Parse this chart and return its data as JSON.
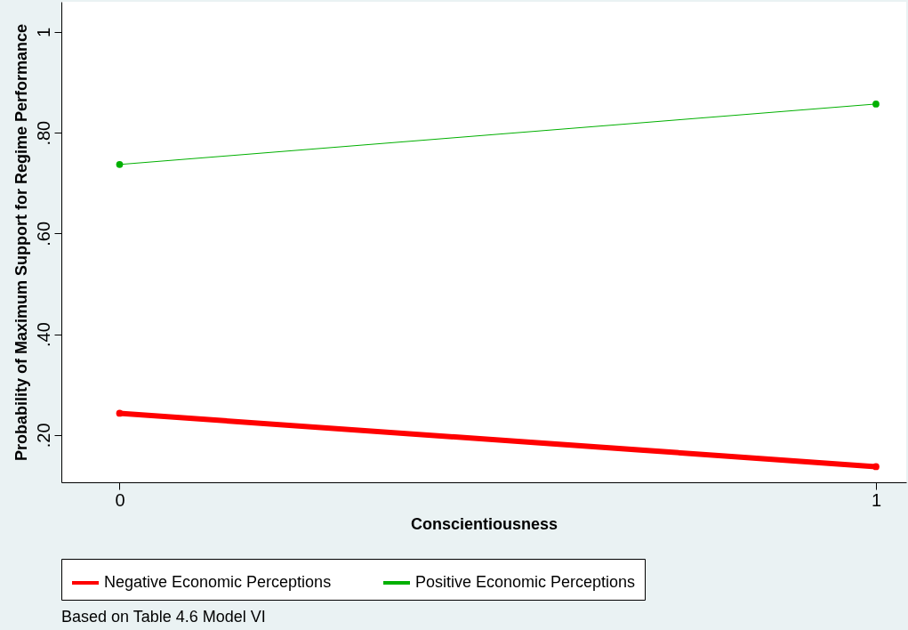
{
  "chart_data": {
    "type": "line",
    "xlabel": "Conscientiousness",
    "ylabel": "Probability of Maximum Support for Regime Performance",
    "x": [
      0,
      1
    ],
    "series": [
      {
        "name": "Negative Economic Perceptions",
        "color": "#ff0000",
        "values": [
          0.243,
          0.137
        ]
      },
      {
        "name": "Positive Economic Perceptions",
        "color": "#00b000",
        "values": [
          0.737,
          0.857
        ]
      }
    ],
    "xlim": [
      -0.077,
      1.04
    ],
    "ylim": [
      0.106,
      1.06
    ],
    "xticks": [
      0,
      1
    ],
    "yticks": [
      {
        "value": 0.2,
        "label": ".20"
      },
      {
        "value": 0.4,
        "label": ".40"
      },
      {
        "value": 0.6,
        "label": ".60"
      },
      {
        "value": 0.8,
        "label": ".80"
      },
      1
    ],
    "grid": false,
    "legend": "bottom",
    "marker": "circle",
    "line_style": "solid",
    "annotations": [
      "Based on Table 4.6 Model VI"
    ]
  }
}
